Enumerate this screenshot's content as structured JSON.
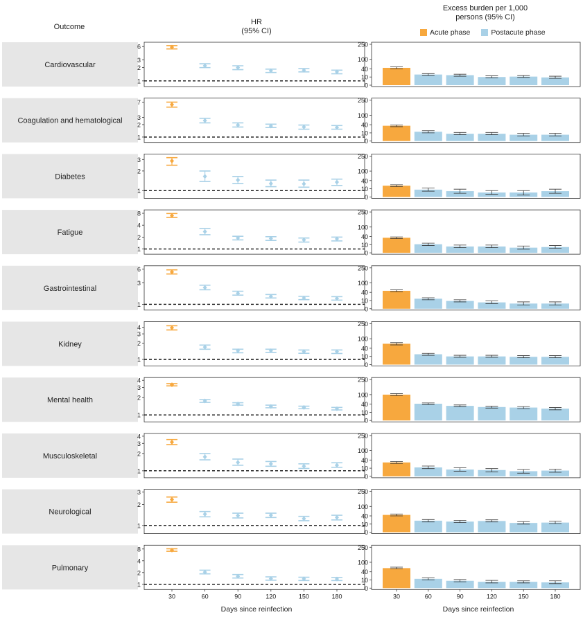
{
  "header": {
    "outcome": "Outcome",
    "hr_title_line1": "HR",
    "hr_title_line2": "(95% CI)",
    "eb_title_line1": "Excess burden per 1,000",
    "eb_title_line2": "persons (95% CI)"
  },
  "legend": [
    {
      "label": "Acute phase",
      "color": "#F7A83E"
    },
    {
      "label": "Postacute phase",
      "color": "#A9D1E7"
    }
  ],
  "colors": {
    "acute": "#F7A83E",
    "postacute": "#A9D1E7",
    "label_box": "#E6E6E6"
  },
  "chart_data": {
    "type": "small-multiples",
    "x_label": "Days since reinfection",
    "x": [
      30,
      60,
      90,
      120,
      150,
      180
    ],
    "panels": [
      {
        "outcome": "Cardiovascular",
        "hr": {
          "ticks": [
            1,
            2,
            3,
            6
          ],
          "ymax": 6.5,
          "est": [
            5.8,
            2.2,
            2.0,
            1.7,
            1.75,
            1.6
          ],
          "lo": [
            5.3,
            2.0,
            1.8,
            1.55,
            1.6,
            1.45
          ],
          "hi": [
            6.3,
            2.45,
            2.2,
            1.85,
            1.9,
            1.75
          ]
        },
        "eb": {
          "ticks": [
            0,
            10,
            40,
            100,
            250
          ],
          "est": [
            45,
            17,
            15,
            10,
            11,
            9
          ],
          "lo": [
            40,
            14,
            12,
            8,
            9,
            7
          ],
          "hi": [
            50,
            20,
            18,
            13,
            14,
            12
          ]
        }
      },
      {
        "outcome": "Coagulation and hematological",
        "hr": {
          "ticks": [
            1,
            2,
            3,
            7
          ],
          "ymax": 7.5,
          "est": [
            6.1,
            2.5,
            1.95,
            1.85,
            1.75,
            1.7
          ],
          "lo": [
            5.3,
            2.2,
            1.75,
            1.7,
            1.55,
            1.55
          ],
          "hi": [
            7.0,
            2.85,
            2.2,
            2.05,
            1.95,
            1.9
          ]
        },
        "eb": {
          "ticks": [
            0,
            10,
            40,
            100,
            250
          ],
          "est": [
            35,
            13,
            8,
            8,
            6,
            6
          ],
          "lo": [
            31,
            10,
            6,
            6,
            4,
            4
          ],
          "hi": [
            39,
            16,
            11,
            11,
            9,
            9
          ]
        }
      },
      {
        "outcome": "Diabetes",
        "hr": {
          "ticks": [
            1,
            2,
            3
          ],
          "ymax": 3.3,
          "est": [
            2.85,
            1.65,
            1.45,
            1.28,
            1.27,
            1.35
          ],
          "lo": [
            2.45,
            1.38,
            1.28,
            1.15,
            1.13,
            1.2
          ],
          "hi": [
            3.2,
            2.0,
            1.65,
            1.45,
            1.45,
            1.5
          ]
        },
        "eb": {
          "ticks": [
            0,
            10,
            40,
            100,
            250
          ],
          "est": [
            19,
            8,
            5,
            3,
            3,
            5
          ],
          "lo": [
            16,
            5,
            2,
            1,
            0.5,
            2
          ],
          "hi": [
            22,
            12,
            9,
            6,
            6,
            9
          ]
        }
      },
      {
        "outcome": "Fatigue",
        "hr": {
          "ticks": [
            1,
            2,
            4,
            8
          ],
          "ymax": 8.3,
          "est": [
            7.0,
            2.75,
            1.9,
            1.85,
            1.7,
            1.8
          ],
          "lo": [
            6.3,
            2.3,
            1.7,
            1.65,
            1.5,
            1.6
          ],
          "hi": [
            7.9,
            3.3,
            2.1,
            2.05,
            1.9,
            2.0
          ]
        },
        "eb": {
          "ticks": [
            0,
            10,
            40,
            100,
            250
          ],
          "est": [
            34,
            11,
            6,
            6,
            4,
            5
          ],
          "lo": [
            30,
            8,
            4,
            4,
            2,
            3
          ],
          "hi": [
            38,
            14,
            9,
            9,
            7,
            8
          ]
        }
      },
      {
        "outcome": "Gastrointestinal",
        "hr": {
          "ticks": [
            1,
            3,
            6
          ],
          "ymax": 6.2,
          "est": [
            5.2,
            2.35,
            1.75,
            1.5,
            1.38,
            1.35
          ],
          "lo": [
            4.7,
            2.1,
            1.6,
            1.38,
            1.27,
            1.24
          ],
          "hi": [
            5.8,
            2.65,
            1.95,
            1.65,
            1.5,
            1.48
          ]
        },
        "eb": {
          "ticks": [
            0,
            10,
            40,
            100,
            250
          ],
          "est": [
            48,
            15,
            9,
            6,
            4,
            4
          ],
          "lo": [
            43,
            12,
            7,
            4,
            2,
            2
          ],
          "hi": [
            53,
            18,
            12,
            9,
            7,
            7
          ]
        }
      },
      {
        "outcome": "Kidney",
        "hr": {
          "ticks": [
            1,
            2,
            3,
            4
          ],
          "ymax": 4.5,
          "est": [
            3.9,
            1.7,
            1.45,
            1.45,
            1.4,
            1.4
          ],
          "lo": [
            3.55,
            1.55,
            1.33,
            1.35,
            1.3,
            1.29
          ],
          "hi": [
            4.25,
            1.85,
            1.55,
            1.55,
            1.5,
            1.5
          ]
        },
        "eb": {
          "ticks": [
            0,
            10,
            40,
            100,
            250
          ],
          "est": [
            65,
            16,
            10,
            10,
            9,
            9
          ],
          "lo": [
            58,
            13,
            8,
            8,
            7,
            7
          ],
          "hi": [
            72,
            19,
            13,
            13,
            12,
            12
          ]
        }
      },
      {
        "outcome": "Mental health",
        "hr": {
          "ticks": [
            1,
            2,
            3,
            4
          ],
          "ymax": 4.0,
          "est": [
            3.35,
            1.75,
            1.55,
            1.4,
            1.35,
            1.28
          ],
          "lo": [
            3.2,
            1.65,
            1.48,
            1.33,
            1.28,
            1.22
          ],
          "hi": [
            3.5,
            1.85,
            1.63,
            1.48,
            1.42,
            1.35
          ]
        },
        "eb": {
          "ticks": [
            0,
            10,
            40,
            100,
            250
          ],
          "est": [
            100,
            42,
            32,
            27,
            25,
            21
          ],
          "lo": [
            92,
            38,
            28,
            23,
            21,
            17
          ],
          "hi": [
            108,
            46,
            36,
            31,
            29,
            25
          ]
        }
      },
      {
        "outcome": "Musculoskeletal",
        "hr": {
          "ticks": [
            1,
            2,
            3,
            4
          ],
          "ymax": 4.0,
          "est": [
            3.15,
            1.75,
            1.4,
            1.32,
            1.2,
            1.25
          ],
          "lo": [
            2.85,
            1.55,
            1.25,
            1.2,
            1.1,
            1.15
          ],
          "hi": [
            3.5,
            2.0,
            1.6,
            1.45,
            1.32,
            1.38
          ]
        },
        "eb": {
          "ticks": [
            0,
            10,
            40,
            100,
            250
          ],
          "est": [
            29,
            12,
            7,
            6,
            4,
            5
          ],
          "lo": [
            25,
            9,
            4,
            3,
            1.5,
            2.5
          ],
          "hi": [
            33,
            16,
            11,
            9,
            7,
            8
          ]
        }
      },
      {
        "outcome": "Neurological",
        "hr": {
          "ticks": [
            1,
            2,
            3
          ],
          "ymax": 3.0,
          "est": [
            2.35,
            1.45,
            1.38,
            1.4,
            1.25,
            1.3
          ],
          "lo": [
            2.15,
            1.33,
            1.28,
            1.3,
            1.17,
            1.2
          ],
          "hi": [
            2.55,
            1.58,
            1.5,
            1.5,
            1.35,
            1.4
          ]
        },
        "eb": {
          "ticks": [
            0,
            10,
            40,
            100,
            250
          ],
          "est": [
            45,
            20,
            17,
            19,
            13,
            14
          ],
          "lo": [
            40,
            16,
            14,
            16,
            10,
            11
          ],
          "hi": [
            50,
            24,
            21,
            23,
            17,
            18
          ]
        }
      },
      {
        "outcome": "Pulmonary",
        "hr": {
          "ticks": [
            1,
            2,
            4,
            8
          ],
          "ymax": 8.5,
          "est": [
            7.5,
            2.05,
            1.6,
            1.4,
            1.38,
            1.37
          ],
          "lo": [
            7.0,
            1.85,
            1.45,
            1.28,
            1.25,
            1.25
          ],
          "hi": [
            8.1,
            2.3,
            1.78,
            1.55,
            1.52,
            1.5
          ]
        },
        "eb": {
          "ticks": [
            0,
            10,
            40,
            100,
            250
          ],
          "est": [
            60,
            13,
            8,
            6,
            6,
            5
          ],
          "lo": [
            55,
            10,
            6,
            4,
            4,
            3
          ],
          "hi": [
            66,
            16,
            11,
            9,
            8,
            8
          ]
        }
      }
    ]
  }
}
